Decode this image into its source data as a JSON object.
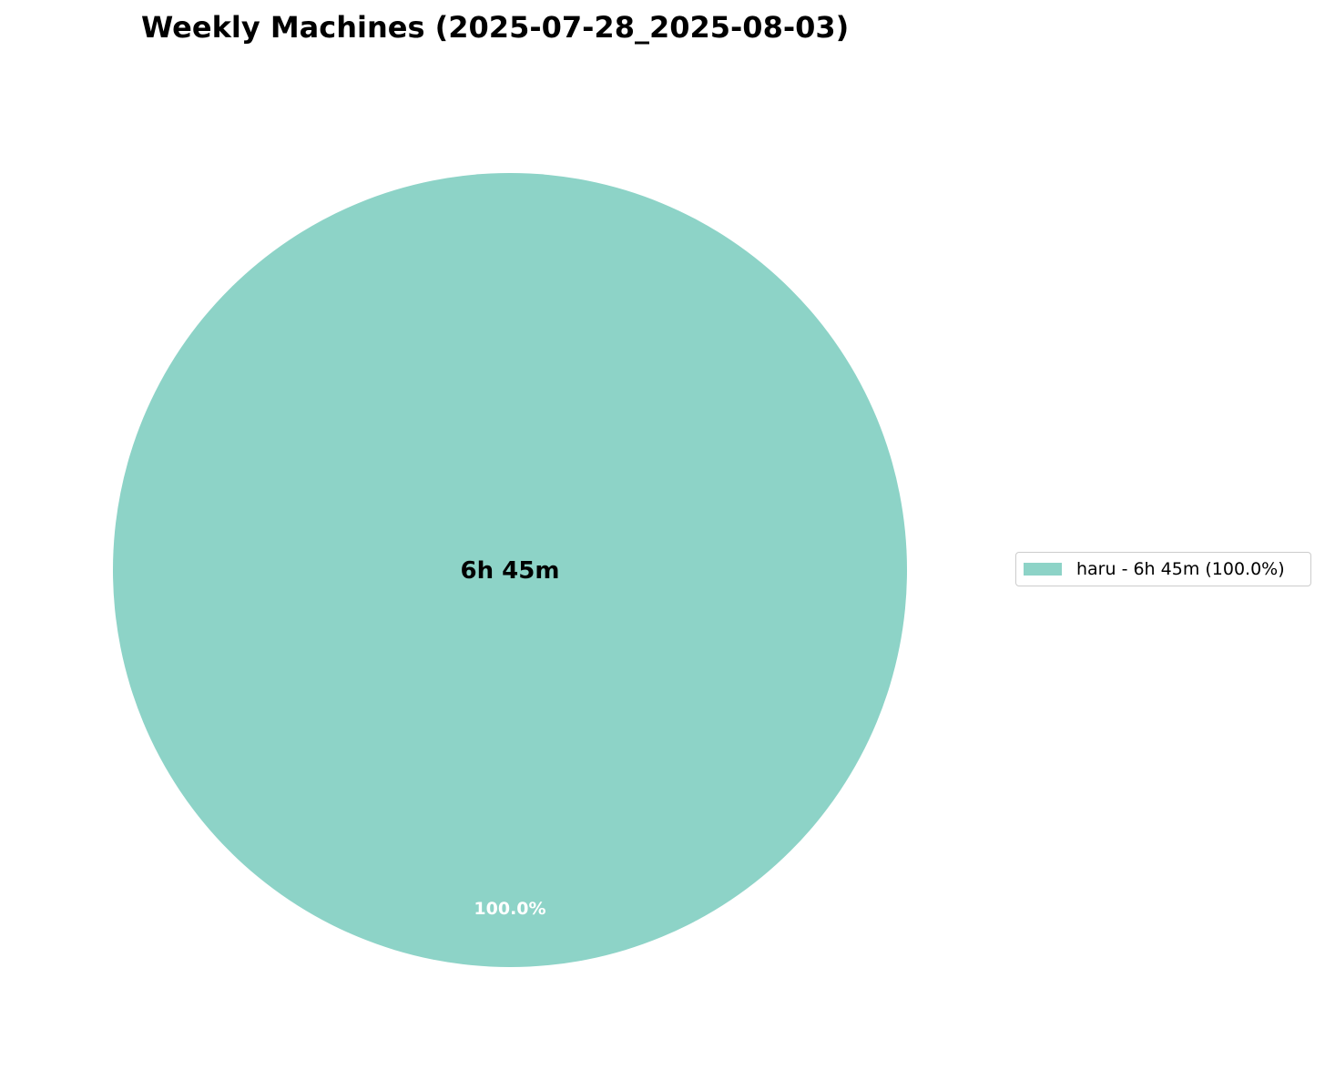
{
  "chart_data": {
    "type": "pie",
    "title": "Weekly Machines (2025-07-28_2025-08-03)",
    "center_label": "6h 45m",
    "slices": [
      {
        "label": "haru",
        "value_label": "6h 45m",
        "percent": 100.0,
        "pct_label": "100.0%",
        "legend_label": "haru - 6h 45m (100.0%)",
        "color": "#8dd3c7"
      }
    ],
    "legend_position": "right"
  }
}
